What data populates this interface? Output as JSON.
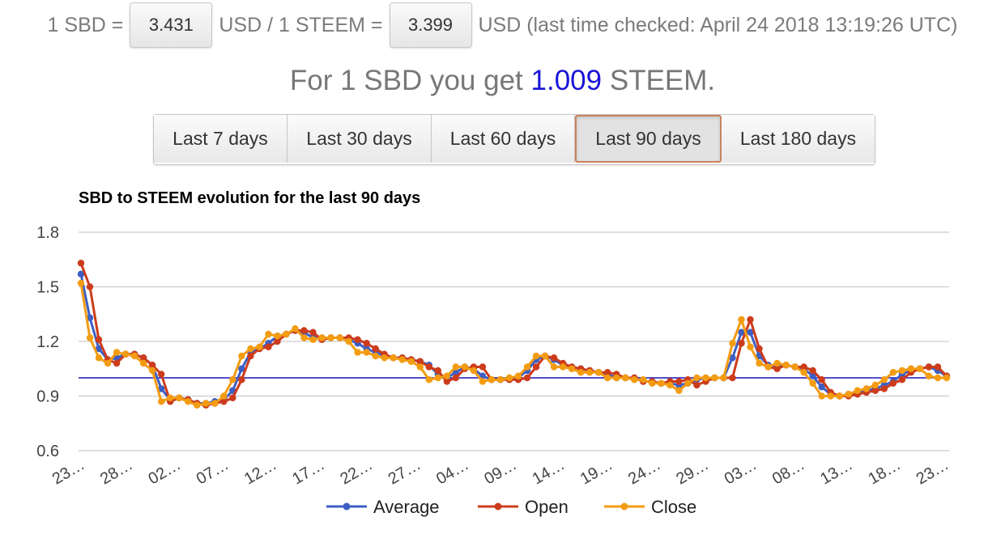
{
  "rates": {
    "prefix": "1 SBD =",
    "sbd_usd": "3.431",
    "middle": "USD / 1 STEEM =",
    "steem_usd": "3.399",
    "suffix": "USD (last time checked: April 24 2018 13:19:26 UTC)"
  },
  "headline": {
    "prefix": "For 1 SBD you get",
    "ratio": "1.009",
    "suffix": "STEEM."
  },
  "ranges": [
    {
      "label": "Last 7 days",
      "active": false
    },
    {
      "label": "Last 30 days",
      "active": false
    },
    {
      "label": "Last 60 days",
      "active": false
    },
    {
      "label": "Last 90 days",
      "active": true
    },
    {
      "label": "Last 180 days",
      "active": false
    }
  ],
  "colors": {
    "average": "#3d5fc4",
    "open": "#cc3c1c",
    "close": "#f39c12",
    "reference_line": "#1a14b8",
    "grid": "#cccccc",
    "active_border": "#c9825f",
    "ratio_text": "#1a14d6"
  },
  "chart_data": {
    "type": "line",
    "title": "SBD to STEEM evolution for the last 90 days",
    "xlabel": "",
    "ylabel": "",
    "ylim": [
      0.6,
      1.8
    ],
    "yticks": [
      "1.8",
      "1.5",
      "1.2",
      "0.9",
      "0.6"
    ],
    "ytick_values": [
      1.8,
      1.5,
      1.2,
      0.9,
      0.6
    ],
    "reference_line": 1.0,
    "grid": true,
    "legend_position": "bottom",
    "x_tick_labels": [
      "23…",
      "28…",
      "02…",
      "07…",
      "12…",
      "17…",
      "22…",
      "27…",
      "04…",
      "09…",
      "14…",
      "19…",
      "24…",
      "29…",
      "03…",
      "08…",
      "13…",
      "18…",
      "23…"
    ],
    "series": [
      {
        "name": "Average",
        "values": [
          1.57,
          1.33,
          1.16,
          1.1,
          1.11,
          1.13,
          1.13,
          1.11,
          1.07,
          0.94,
          0.88,
          0.89,
          0.88,
          0.86,
          0.86,
          0.87,
          0.88,
          0.93,
          1.05,
          1.14,
          1.16,
          1.19,
          1.23,
          1.24,
          1.26,
          1.25,
          1.22,
          1.22,
          1.22,
          1.22,
          1.21,
          1.19,
          1.16,
          1.14,
          1.12,
          1.11,
          1.11,
          1.1,
          1.09,
          1.07,
          1.02,
          1.0,
          1.03,
          1.06,
          1.05,
          1.01,
          0.99,
          0.99,
          1.0,
          1.0,
          1.04,
          1.1,
          1.12,
          1.1,
          1.07,
          1.06,
          1.05,
          1.04,
          1.03,
          1.02,
          1.0,
          1.0,
          1.0,
          0.98,
          0.98,
          0.97,
          0.97,
          0.96,
          0.97,
          0.99,
          1.0,
          1.0,
          1.0,
          1.11,
          1.25,
          1.25,
          1.12,
          1.07,
          1.06,
          1.07,
          1.06,
          1.05,
          1.01,
          0.95,
          0.91,
          0.9,
          0.91,
          0.92,
          0.93,
          0.94,
          0.96,
          0.98,
          1.02,
          1.04,
          1.05,
          1.06,
          1.04,
          1.01
        ]
      },
      {
        "name": "Open",
        "values": [
          1.63,
          1.5,
          1.21,
          1.1,
          1.08,
          1.13,
          1.13,
          1.11,
          1.07,
          1.02,
          0.87,
          0.89,
          0.88,
          0.86,
          0.85,
          0.86,
          0.87,
          0.89,
          0.99,
          1.12,
          1.16,
          1.17,
          1.2,
          1.24,
          1.26,
          1.26,
          1.25,
          1.21,
          1.22,
          1.22,
          1.22,
          1.21,
          1.19,
          1.16,
          1.13,
          1.11,
          1.11,
          1.1,
          1.09,
          1.06,
          1.04,
          0.98,
          1.0,
          1.05,
          1.06,
          1.06,
          0.99,
          0.99,
          0.99,
          0.99,
          1.0,
          1.06,
          1.12,
          1.11,
          1.08,
          1.06,
          1.05,
          1.04,
          1.03,
          1.03,
          1.02,
          1.0,
          1.0,
          0.98,
          0.98,
          0.97,
          0.98,
          0.98,
          0.99,
          0.96,
          0.98,
          1.0,
          1.0,
          1.0,
          1.19,
          1.32,
          1.16,
          1.06,
          1.05,
          1.07,
          1.06,
          1.06,
          1.04,
          0.99,
          0.92,
          0.9,
          0.9,
          0.91,
          0.92,
          0.93,
          0.94,
          0.97,
          0.99,
          1.03,
          1.05,
          1.06,
          1.06,
          1.01
        ]
      },
      {
        "name": "Close",
        "values": [
          1.52,
          1.22,
          1.11,
          1.08,
          1.14,
          1.13,
          1.12,
          1.08,
          1.04,
          0.87,
          0.89,
          0.89,
          0.87,
          0.85,
          0.86,
          0.86,
          0.9,
          0.99,
          1.12,
          1.16,
          1.17,
          1.24,
          1.23,
          1.24,
          1.27,
          1.22,
          1.21,
          1.22,
          1.22,
          1.22,
          1.2,
          1.14,
          1.14,
          1.12,
          1.11,
          1.11,
          1.1,
          1.09,
          1.06,
          0.99,
          1.0,
          1.01,
          1.06,
          1.06,
          1.04,
          0.98,
          0.99,
          0.99,
          1.0,
          1.01,
          1.06,
          1.12,
          1.12,
          1.06,
          1.06,
          1.05,
          1.03,
          1.03,
          1.03,
          1.0,
          1.0,
          1.0,
          0.99,
          0.99,
          0.97,
          0.97,
          0.96,
          0.93,
          0.97,
          1.0,
          1.0,
          1.0,
          1.0,
          1.19,
          1.32,
          1.17,
          1.08,
          1.06,
          1.08,
          1.07,
          1.06,
          1.03,
          0.97,
          0.9,
          0.9,
          0.9,
          0.91,
          0.93,
          0.94,
          0.96,
          0.99,
          1.03,
          1.04,
          1.05,
          1.05,
          1.01,
          1.0,
          1.0
        ]
      }
    ]
  }
}
